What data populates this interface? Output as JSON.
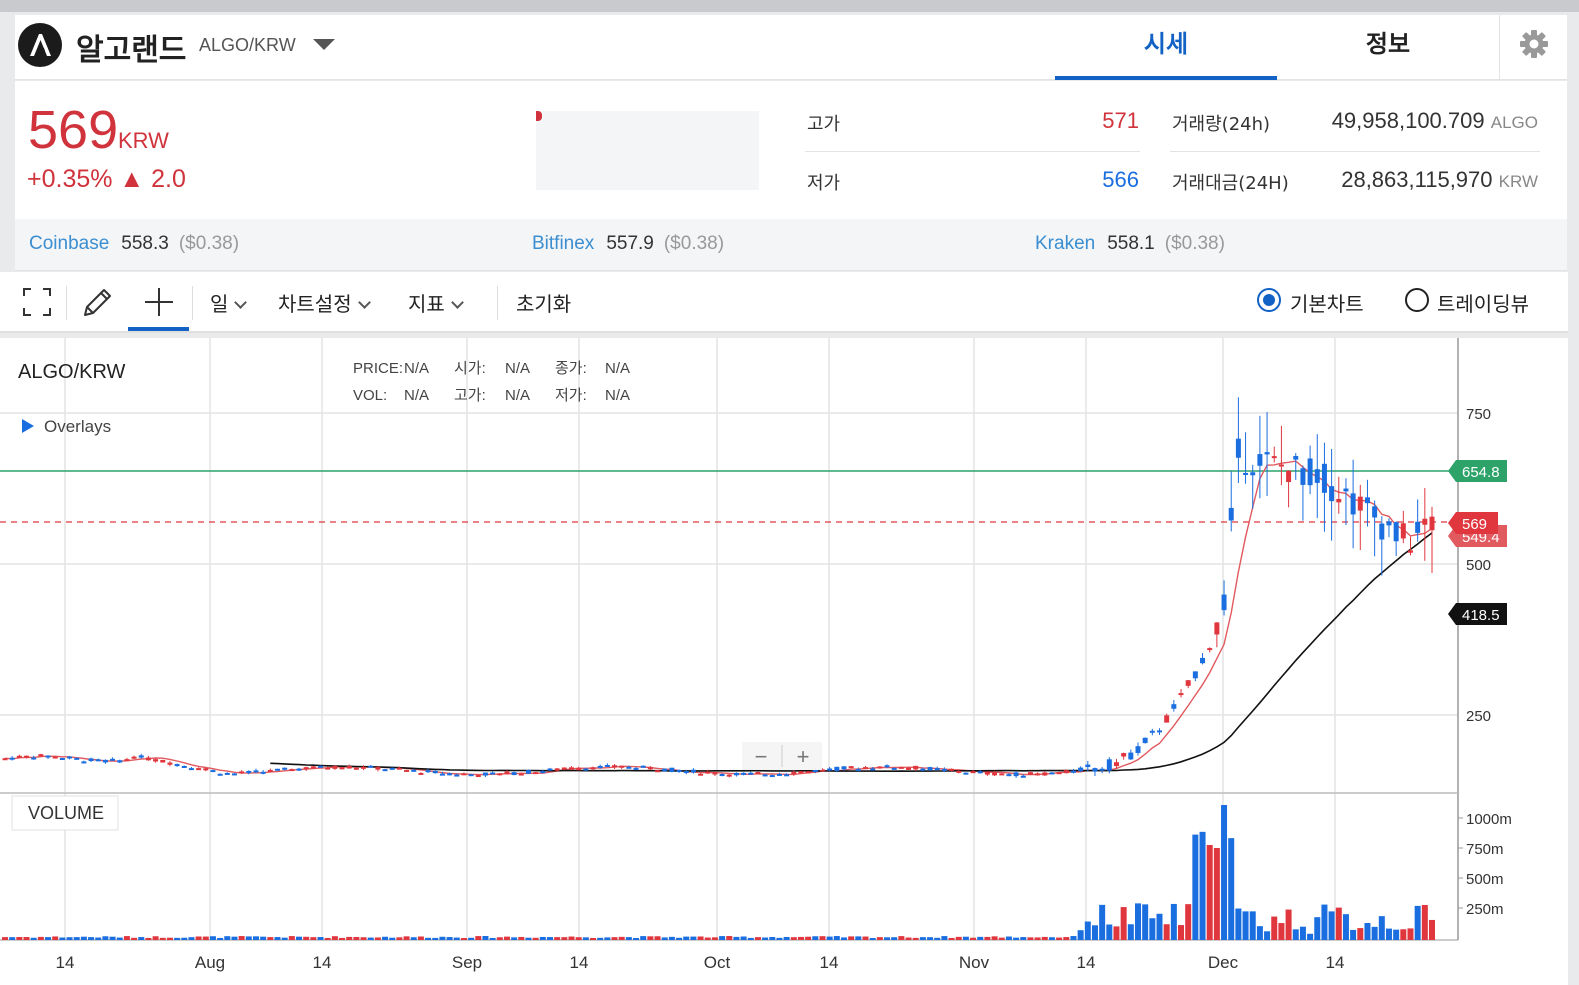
{
  "header": {
    "coin_name": "알고랜드",
    "pair": "ALGO/KRW",
    "tabs": [
      {
        "label": "시세",
        "active": true
      },
      {
        "label": "정보",
        "active": false
      }
    ]
  },
  "price": {
    "current": "569",
    "unit": "KRW",
    "change": "+0.35% ▲ 2.0"
  },
  "stats": {
    "high_label": "고가",
    "high": "571",
    "low_label": "저가",
    "low": "566",
    "volume_label": "거래량(24h)",
    "volume": "49,958,100.709",
    "volume_unit": "ALGO",
    "value_label": "거래대금(24H)",
    "value": "28,863,115,970",
    "value_unit": "KRW"
  },
  "exchanges": [
    {
      "name": "Coinbase",
      "price": "558.3",
      "usd": "($0.38)"
    },
    {
      "name": "Bitfinex",
      "price": "557.9",
      "usd": "($0.38)"
    },
    {
      "name": "Kraken",
      "price": "558.1",
      "usd": "($0.38)"
    }
  ],
  "toolbar": {
    "interval": "일",
    "chart_settings": "차트설정",
    "indicators": "지표",
    "reset": "초기화",
    "view_basic": "기본차트",
    "view_trading": "트레이딩뷰"
  },
  "chart_data": {
    "type": "candlestick",
    "symbol": "ALGO/KRW",
    "overlays_label": "Overlays",
    "legend": {
      "price": "PRICE:",
      "open": "시가:",
      "close": "종가:",
      "vol": "VOL:",
      "high": "고가:",
      "low": "저가:",
      "na": "N/A"
    },
    "x_ticks": [
      "14",
      "Aug",
      "14",
      "Sep",
      "14",
      "Oct",
      "14",
      "Nov",
      "14",
      "Dec",
      "14"
    ],
    "y_ticks": [
      "750",
      "500",
      "250"
    ],
    "ylim": [
      130,
      880
    ],
    "current_price_label": "569",
    "ma_label": "549.4",
    "green_line_label": "654.8",
    "black_ma_label": "418.5",
    "volume_label": "VOLUME",
    "volume_ticks": [
      "1000m",
      "750m",
      "500m",
      "250m"
    ],
    "zoom_in": "+",
    "zoom_out": "−"
  },
  "colors": {
    "up": "#e0363e",
    "down": "#1a6ee0",
    "accent": "#1261c4",
    "green_line": "#2da36a"
  }
}
